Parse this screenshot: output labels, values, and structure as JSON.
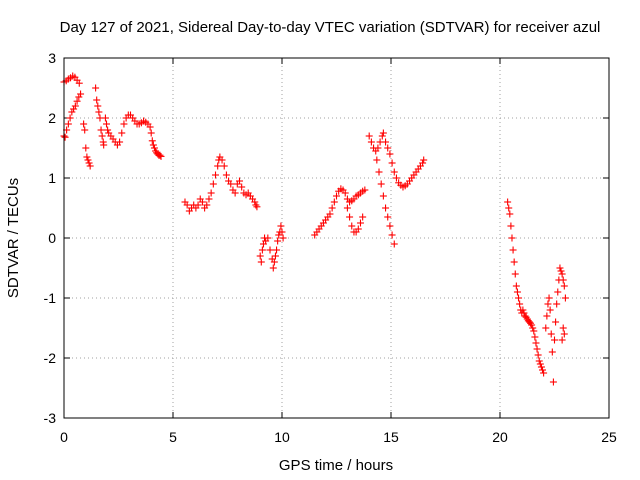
{
  "chart_data": {
    "type": "scatter",
    "title": "Day 127 of 2021, Sidereal Day-to-day VTEC variation (SDTVAR) for receiver azul",
    "xlabel": "GPS time / hours",
    "ylabel": "SDTVAR / TECUs",
    "xlim": [
      0,
      25
    ],
    "ylim": [
      -3,
      3
    ],
    "xticks": [
      "0",
      "5",
      "10",
      "15",
      "20",
      "25"
    ],
    "yticks": [
      "-3",
      "-2",
      "-1",
      "0",
      "1",
      "2",
      "3"
    ],
    "grid": true,
    "marker": "+",
    "color": "#ff0000",
    "series": [
      {
        "name": "SDTVAR",
        "points": [
          [
            0.0,
            2.6
          ],
          [
            0.1,
            2.62
          ],
          [
            0.2,
            2.65
          ],
          [
            0.3,
            2.67
          ],
          [
            0.4,
            2.7
          ],
          [
            0.5,
            2.68
          ],
          [
            0.6,
            2.63
          ],
          [
            0.7,
            2.58
          ],
          [
            0.0,
            1.7
          ],
          [
            0.05,
            1.68
          ],
          [
            0.12,
            1.8
          ],
          [
            0.2,
            1.9
          ],
          [
            0.28,
            2.0
          ],
          [
            0.36,
            2.1
          ],
          [
            0.44,
            2.15
          ],
          [
            0.52,
            2.2
          ],
          [
            0.6,
            2.28
          ],
          [
            0.68,
            2.35
          ],
          [
            0.76,
            2.4
          ],
          [
            0.9,
            1.9
          ],
          [
            0.95,
            1.8
          ],
          [
            1.0,
            1.5
          ],
          [
            1.05,
            1.35
          ],
          [
            1.1,
            1.3
          ],
          [
            1.15,
            1.25
          ],
          [
            1.2,
            1.2
          ],
          [
            1.45,
            2.5
          ],
          [
            1.5,
            2.3
          ],
          [
            1.55,
            2.2
          ],
          [
            1.6,
            2.1
          ],
          [
            1.65,
            2.0
          ],
          [
            1.7,
            1.8
          ],
          [
            1.75,
            1.7
          ],
          [
            1.8,
            1.6
          ],
          [
            1.82,
            1.55
          ],
          [
            1.9,
            2.0
          ],
          [
            1.95,
            1.9
          ],
          [
            2.0,
            1.8
          ],
          [
            2.05,
            1.75
          ],
          [
            2.15,
            1.7
          ],
          [
            2.25,
            1.65
          ],
          [
            2.35,
            1.6
          ],
          [
            2.45,
            1.55
          ],
          [
            2.55,
            1.6
          ],
          [
            2.65,
            1.75
          ],
          [
            2.75,
            1.9
          ],
          [
            2.85,
            2.0
          ],
          [
            2.95,
            2.05
          ],
          [
            3.05,
            2.05
          ],
          [
            3.15,
            2.0
          ],
          [
            3.25,
            1.95
          ],
          [
            3.35,
            1.9
          ],
          [
            3.45,
            1.9
          ],
          [
            3.55,
            1.92
          ],
          [
            3.65,
            1.95
          ],
          [
            3.75,
            1.93
          ],
          [
            3.85,
            1.9
          ],
          [
            3.95,
            1.85
          ],
          [
            4.0,
            1.75
          ],
          [
            4.05,
            1.62
          ],
          [
            4.1,
            1.55
          ],
          [
            4.15,
            1.5
          ],
          [
            4.2,
            1.45
          ],
          [
            4.25,
            1.42
          ],
          [
            4.3,
            1.4
          ],
          [
            4.35,
            1.38
          ],
          [
            4.4,
            1.38
          ],
          [
            4.45,
            1.36
          ],
          [
            5.55,
            0.6
          ],
          [
            5.65,
            0.55
          ],
          [
            5.75,
            0.45
          ],
          [
            5.85,
            0.5
          ],
          [
            5.95,
            0.55
          ],
          [
            6.05,
            0.5
          ],
          [
            6.15,
            0.55
          ],
          [
            6.25,
            0.65
          ],
          [
            6.35,
            0.6
          ],
          [
            6.45,
            0.5
          ],
          [
            6.55,
            0.55
          ],
          [
            6.65,
            0.65
          ],
          [
            6.75,
            0.75
          ],
          [
            6.85,
            0.9
          ],
          [
            6.95,
            1.05
          ],
          [
            7.05,
            1.2
          ],
          [
            7.1,
            1.3
          ],
          [
            7.15,
            1.35
          ],
          [
            7.25,
            1.3
          ],
          [
            7.35,
            1.2
          ],
          [
            7.45,
            1.05
          ],
          [
            7.55,
            0.95
          ],
          [
            7.65,
            0.9
          ],
          [
            7.75,
            0.8
          ],
          [
            7.85,
            0.75
          ],
          [
            7.95,
            0.9
          ],
          [
            8.05,
            0.95
          ],
          [
            8.15,
            0.85
          ],
          [
            8.25,
            0.75
          ],
          [
            8.35,
            0.72
          ],
          [
            8.45,
            0.75
          ],
          [
            8.55,
            0.7
          ],
          [
            8.65,
            0.65
          ],
          [
            8.75,
            0.6
          ],
          [
            8.8,
            0.55
          ],
          [
            8.85,
            0.52
          ],
          [
            9.0,
            -0.3
          ],
          [
            9.05,
            -0.4
          ],
          [
            9.1,
            -0.2
          ],
          [
            9.15,
            -0.1
          ],
          [
            9.2,
            0.0
          ],
          [
            9.25,
            -0.05
          ],
          [
            9.35,
            0.0
          ],
          [
            9.45,
            -0.2
          ],
          [
            9.55,
            -0.35
          ],
          [
            9.6,
            -0.5
          ],
          [
            9.65,
            -0.4
          ],
          [
            9.7,
            -0.3
          ],
          [
            9.75,
            -0.2
          ],
          [
            9.8,
            -0.05
          ],
          [
            9.85,
            0.05
          ],
          [
            9.9,
            0.1
          ],
          [
            9.95,
            0.2
          ],
          [
            10.0,
            0.1
          ],
          [
            10.05,
            0.0
          ],
          [
            11.5,
            0.05
          ],
          [
            11.6,
            0.1
          ],
          [
            11.7,
            0.15
          ],
          [
            11.8,
            0.2
          ],
          [
            11.9,
            0.25
          ],
          [
            12.0,
            0.3
          ],
          [
            12.1,
            0.35
          ],
          [
            12.2,
            0.4
          ],
          [
            12.3,
            0.5
          ],
          [
            12.4,
            0.6
          ],
          [
            12.5,
            0.7
          ],
          [
            12.6,
            0.78
          ],
          [
            12.7,
            0.82
          ],
          [
            12.8,
            0.8
          ],
          [
            12.9,
            0.75
          ],
          [
            13.0,
            0.65
          ],
          [
            13.1,
            0.6
          ],
          [
            13.2,
            0.62
          ],
          [
            13.3,
            0.65
          ],
          [
            13.4,
            0.7
          ],
          [
            13.5,
            0.72
          ],
          [
            13.6,
            0.75
          ],
          [
            13.7,
            0.78
          ],
          [
            13.8,
            0.8
          ],
          [
            13.0,
            0.5
          ],
          [
            13.1,
            0.35
          ],
          [
            13.2,
            0.2
          ],
          [
            13.3,
            0.1
          ],
          [
            13.4,
            0.1
          ],
          [
            13.5,
            0.15
          ],
          [
            13.6,
            0.25
          ],
          [
            13.7,
            0.35
          ],
          [
            14.0,
            1.7
          ],
          [
            14.1,
            1.6
          ],
          [
            14.2,
            1.5
          ],
          [
            14.3,
            1.45
          ],
          [
            14.4,
            1.5
          ],
          [
            14.5,
            1.6
          ],
          [
            14.6,
            1.7
          ],
          [
            14.65,
            1.75
          ],
          [
            14.35,
            1.3
          ],
          [
            14.45,
            1.1
          ],
          [
            14.55,
            0.9
          ],
          [
            14.65,
            0.7
          ],
          [
            14.75,
            0.5
          ],
          [
            14.85,
            0.35
          ],
          [
            14.95,
            0.2
          ],
          [
            15.05,
            0.05
          ],
          [
            15.15,
            -0.1
          ],
          [
            14.75,
            1.6
          ],
          [
            14.85,
            1.5
          ],
          [
            14.95,
            1.4
          ],
          [
            15.05,
            1.25
          ],
          [
            15.15,
            1.1
          ],
          [
            15.25,
            1.0
          ],
          [
            15.35,
            0.92
          ],
          [
            15.45,
            0.88
          ],
          [
            15.55,
            0.85
          ],
          [
            15.65,
            0.87
          ],
          [
            15.75,
            0.9
          ],
          [
            15.85,
            0.95
          ],
          [
            15.95,
            1.0
          ],
          [
            16.05,
            1.05
          ],
          [
            16.15,
            1.1
          ],
          [
            16.25,
            1.15
          ],
          [
            16.35,
            1.2
          ],
          [
            16.45,
            1.25
          ],
          [
            16.5,
            1.3
          ],
          [
            20.35,
            0.6
          ],
          [
            20.4,
            0.5
          ],
          [
            20.45,
            0.4
          ],
          [
            20.5,
            0.2
          ],
          [
            20.55,
            0.0
          ],
          [
            20.6,
            -0.2
          ],
          [
            20.65,
            -0.4
          ],
          [
            20.7,
            -0.6
          ],
          [
            20.75,
            -0.8
          ],
          [
            20.8,
            -0.9
          ],
          [
            20.85,
            -1.0
          ],
          [
            20.9,
            -1.1
          ],
          [
            20.95,
            -1.2
          ],
          [
            21.0,
            -1.25
          ],
          [
            21.05,
            -1.2
          ],
          [
            21.1,
            -1.25
          ],
          [
            21.15,
            -1.3
          ],
          [
            21.2,
            -1.32
          ],
          [
            21.25,
            -1.35
          ],
          [
            21.3,
            -1.38
          ],
          [
            21.35,
            -1.4
          ],
          [
            21.4,
            -1.42
          ],
          [
            21.45,
            -1.45
          ],
          [
            21.5,
            -1.5
          ],
          [
            21.55,
            -1.55
          ],
          [
            21.6,
            -1.65
          ],
          [
            21.65,
            -1.75
          ],
          [
            21.7,
            -1.85
          ],
          [
            21.75,
            -1.95
          ],
          [
            21.8,
            -2.05
          ],
          [
            21.85,
            -2.1
          ],
          [
            21.9,
            -2.15
          ],
          [
            21.95,
            -2.2
          ],
          [
            22.0,
            -2.25
          ],
          [
            22.1,
            -1.5
          ],
          [
            22.15,
            -1.3
          ],
          [
            22.2,
            -1.1
          ],
          [
            22.25,
            -1.0
          ],
          [
            22.3,
            -1.2
          ],
          [
            22.35,
            -1.6
          ],
          [
            22.4,
            -1.9
          ],
          [
            22.45,
            -2.4
          ],
          [
            22.5,
            -1.7
          ],
          [
            22.55,
            -1.4
          ],
          [
            22.6,
            -1.1
          ],
          [
            22.65,
            -0.9
          ],
          [
            22.7,
            -0.7
          ],
          [
            22.75,
            -0.5
          ],
          [
            22.8,
            -0.55
          ],
          [
            22.85,
            -0.6
          ],
          [
            22.9,
            -0.7
          ],
          [
            22.95,
            -0.8
          ],
          [
            23.0,
            -1.0
          ],
          [
            22.9,
            -1.5
          ],
          [
            22.95,
            -1.6
          ],
          [
            22.85,
            -1.7
          ]
        ]
      }
    ]
  }
}
